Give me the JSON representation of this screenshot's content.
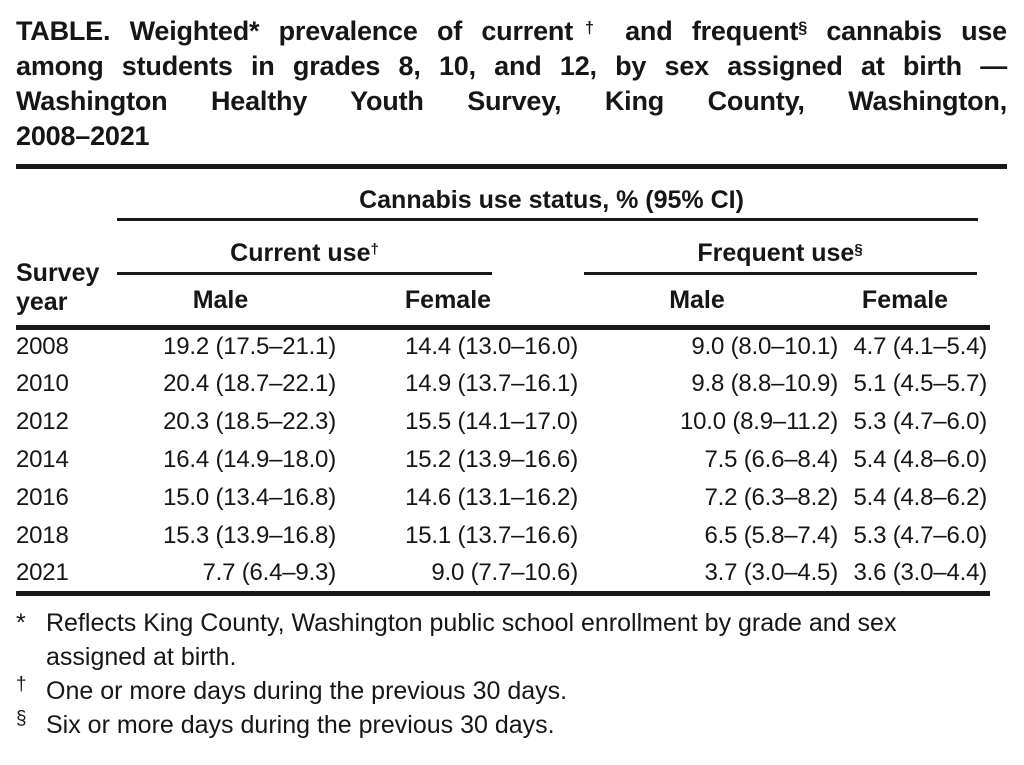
{
  "title": {
    "lines": [
      {
        "justify": true,
        "segments": [
          {
            "t": "TABLE. Weighted* prevalence of current"
          },
          {
            "t": "†",
            "sup": true
          },
          {
            "t": " and frequent"
          },
          {
            "t": "§",
            "sup": true
          },
          {
            "t": " cannabis use"
          }
        ]
      },
      {
        "justify": true,
        "segments": [
          {
            "t": "among students in grades 8, 10, and 12, by sex assigned at birth —"
          }
        ]
      },
      {
        "justify": true,
        "segments": [
          {
            "t": "Washington Healthy Youth Survey, King County, Washington,"
          }
        ]
      },
      {
        "justify": false,
        "segments": [
          {
            "t": "2008–2021"
          }
        ]
      }
    ]
  },
  "table": {
    "spanner": "Cannabis use status, % (95% CI)",
    "row_header": {
      "line1": "Survey",
      "line2": "year"
    },
    "groups": [
      {
        "segments": [
          {
            "t": "Current use"
          },
          {
            "t": "†",
            "sup": true
          }
        ]
      },
      {
        "segments": [
          {
            "t": "Frequent use"
          },
          {
            "t": "§",
            "sup": true
          }
        ]
      }
    ],
    "columns": [
      "Male",
      "Female",
      "Male",
      "Female"
    ],
    "rows": [
      {
        "year": "2008",
        "cells": [
          "19.2 (17.5–21.1)",
          "14.4 (13.0–16.0)",
          "9.0 (8.0–10.1)",
          "4.7 (4.1–5.4)"
        ]
      },
      {
        "year": "2010",
        "cells": [
          "20.4 (18.7–22.1)",
          "14.9 (13.7–16.1)",
          "9.8 (8.8–10.9)",
          "5.1 (4.5–5.7)"
        ]
      },
      {
        "year": "2012",
        "cells": [
          "20.3 (18.5–22.3)",
          "15.5 (14.1–17.0)",
          "10.0 (8.9–11.2)",
          "5.3 (4.7–6.0)"
        ]
      },
      {
        "year": "2014",
        "cells": [
          "16.4 (14.9–18.0)",
          "15.2 (13.9–16.6)",
          "7.5 (6.6–8.4)",
          "5.4 (4.8–6.0)"
        ]
      },
      {
        "year": "2016",
        "cells": [
          "15.0 (13.4–16.8)",
          "14.6 (13.1–16.2)",
          "7.2 (6.3–8.2)",
          "5.4 (4.8–6.2)"
        ]
      },
      {
        "year": "2018",
        "cells": [
          "15.3 (13.9–16.8)",
          "15.1 (13.7–16.6)",
          "6.5 (5.8–7.4)",
          "5.3 (4.7–6.0)"
        ]
      },
      {
        "year": "2021",
        "cells": [
          "7.7 (6.4–9.3)",
          "9.0 (7.7–10.6)",
          "3.7 (3.0–4.5)",
          "3.6 (3.0–4.4)"
        ]
      }
    ]
  },
  "footnotes": [
    {
      "marker": "*",
      "sup": false,
      "text": "Reflects King County, Washington public school enrollment by grade and sex assigned at birth."
    },
    {
      "marker": "†",
      "sup": true,
      "text": "One or more days during the previous 30 days."
    },
    {
      "marker": "§",
      "sup": true,
      "text": "Six or more days during the previous 30 days."
    }
  ],
  "colors": {
    "text": "#161616",
    "rule": "#191919",
    "background": "#ffffff"
  }
}
